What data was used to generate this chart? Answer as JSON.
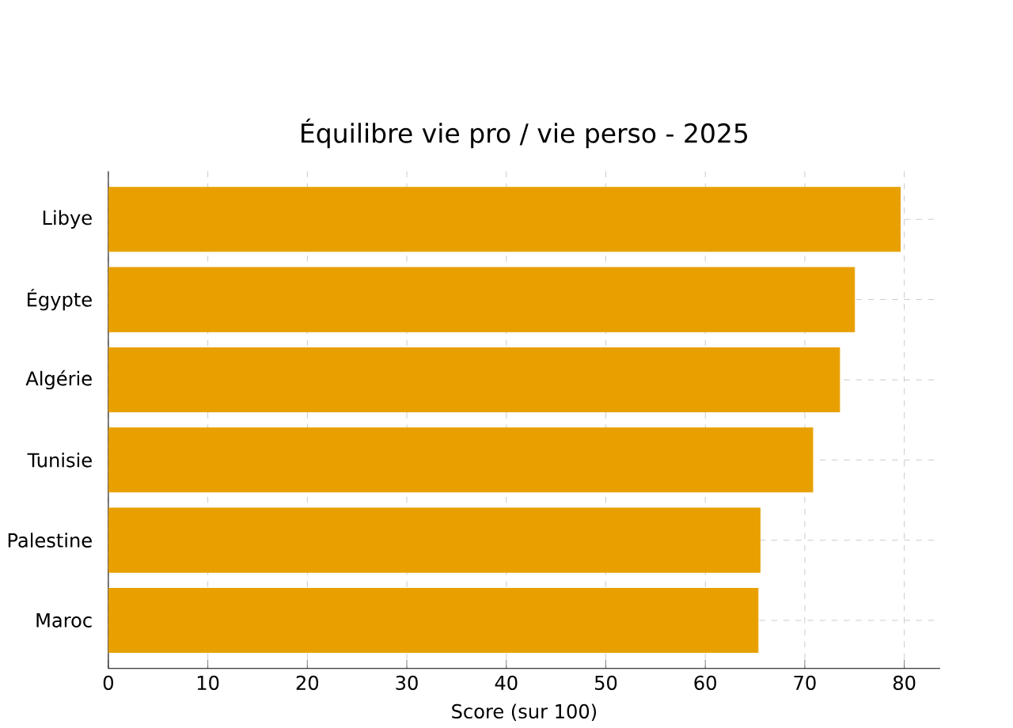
{
  "chart_data": {
    "type": "bar",
    "orientation": "horizontal",
    "title": "Équilibre vie pro / vie perso - 2025",
    "xlabel": "Score (sur 100)",
    "categories": [
      "Libye",
      "Égypte",
      "Algérie",
      "Tunisie",
      "Palestine",
      "Maroc"
    ],
    "values": [
      79.6,
      75.0,
      73.5,
      70.8,
      65.5,
      65.3
    ],
    "color": "#e8a000",
    "xlim": [
      0,
      83.6
    ],
    "xticks": [
      0,
      10,
      20,
      30,
      40,
      50,
      60,
      70,
      80
    ],
    "grid": true
  }
}
